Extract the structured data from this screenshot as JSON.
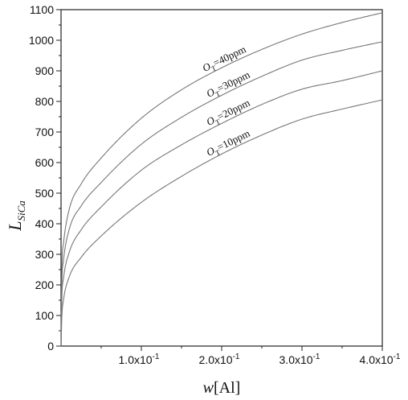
{
  "chart_data": {
    "type": "line",
    "title": "",
    "xlabel": {
      "main": "w",
      "bracket": "[Al]"
    },
    "ylabel": {
      "main": "L",
      "sub": "SiCa"
    },
    "xlim": [
      0,
      0.4
    ],
    "ylim": [
      0,
      1100
    ],
    "grid": false,
    "x_ticks": [
      {
        "value": 0.1,
        "base": "1.0x10",
        "exp": "-1"
      },
      {
        "value": 0.2,
        "base": "2.0x10",
        "exp": "-1"
      },
      {
        "value": 0.3,
        "base": "3.0x10",
        "exp": "-1"
      },
      {
        "value": 0.4,
        "base": "4.0x10",
        "exp": "-1"
      }
    ],
    "y_ticks": [
      0,
      100,
      200,
      300,
      400,
      500,
      600,
      700,
      800,
      900,
      1000,
      1100
    ],
    "series": [
      {
        "name": "O_T=40ppm",
        "label_main": "O",
        "label_sub": "T",
        "label_rest": "=40ppm",
        "label_x": 0.205,
        "points": [
          [
            0,
            0
          ],
          [
            0.001,
            250
          ],
          [
            0.003,
            335
          ],
          [
            0.01,
            445
          ],
          [
            0.025,
            530
          ],
          [
            0.05,
            615
          ],
          [
            0.1,
            745
          ],
          [
            0.15,
            838
          ],
          [
            0.2,
            910
          ],
          [
            0.25,
            970
          ],
          [
            0.3,
            1020
          ],
          [
            0.35,
            1058
          ],
          [
            0.4,
            1090
          ]
        ]
      },
      {
        "name": "O_T=30ppm",
        "label_main": "O",
        "label_sub": "T",
        "label_rest": "=30ppm",
        "label_x": 0.21,
        "points": [
          [
            0,
            0
          ],
          [
            0.001,
            200
          ],
          [
            0.003,
            278
          ],
          [
            0.01,
            380
          ],
          [
            0.025,
            458
          ],
          [
            0.05,
            535
          ],
          [
            0.1,
            660
          ],
          [
            0.15,
            748
          ],
          [
            0.2,
            820
          ],
          [
            0.25,
            882
          ],
          [
            0.3,
            935
          ],
          [
            0.35,
            967
          ],
          [
            0.4,
            995
          ]
        ]
      },
      {
        "name": "O_T=20ppm",
        "label_main": "O",
        "label_sub": "T",
        "label_rest": "=20ppm",
        "label_x": 0.21,
        "points": [
          [
            0,
            0
          ],
          [
            0.001,
            155
          ],
          [
            0.003,
            220
          ],
          [
            0.01,
            305
          ],
          [
            0.025,
            380
          ],
          [
            0.05,
            455
          ],
          [
            0.1,
            575
          ],
          [
            0.15,
            658
          ],
          [
            0.2,
            728
          ],
          [
            0.25,
            790
          ],
          [
            0.3,
            840
          ],
          [
            0.35,
            868
          ],
          [
            0.4,
            900
          ]
        ]
      },
      {
        "name": "O_T=10ppm",
        "label_main": "O",
        "label_sub": "T",
        "label_rest": "=10ppm",
        "label_x": 0.21,
        "points": [
          [
            0,
            0
          ],
          [
            0.001,
            95
          ],
          [
            0.003,
            150
          ],
          [
            0.01,
            225
          ],
          [
            0.025,
            290
          ],
          [
            0.05,
            360
          ],
          [
            0.1,
            470
          ],
          [
            0.15,
            555
          ],
          [
            0.2,
            628
          ],
          [
            0.25,
            690
          ],
          [
            0.3,
            742
          ],
          [
            0.35,
            775
          ],
          [
            0.4,
            805
          ]
        ]
      }
    ]
  }
}
